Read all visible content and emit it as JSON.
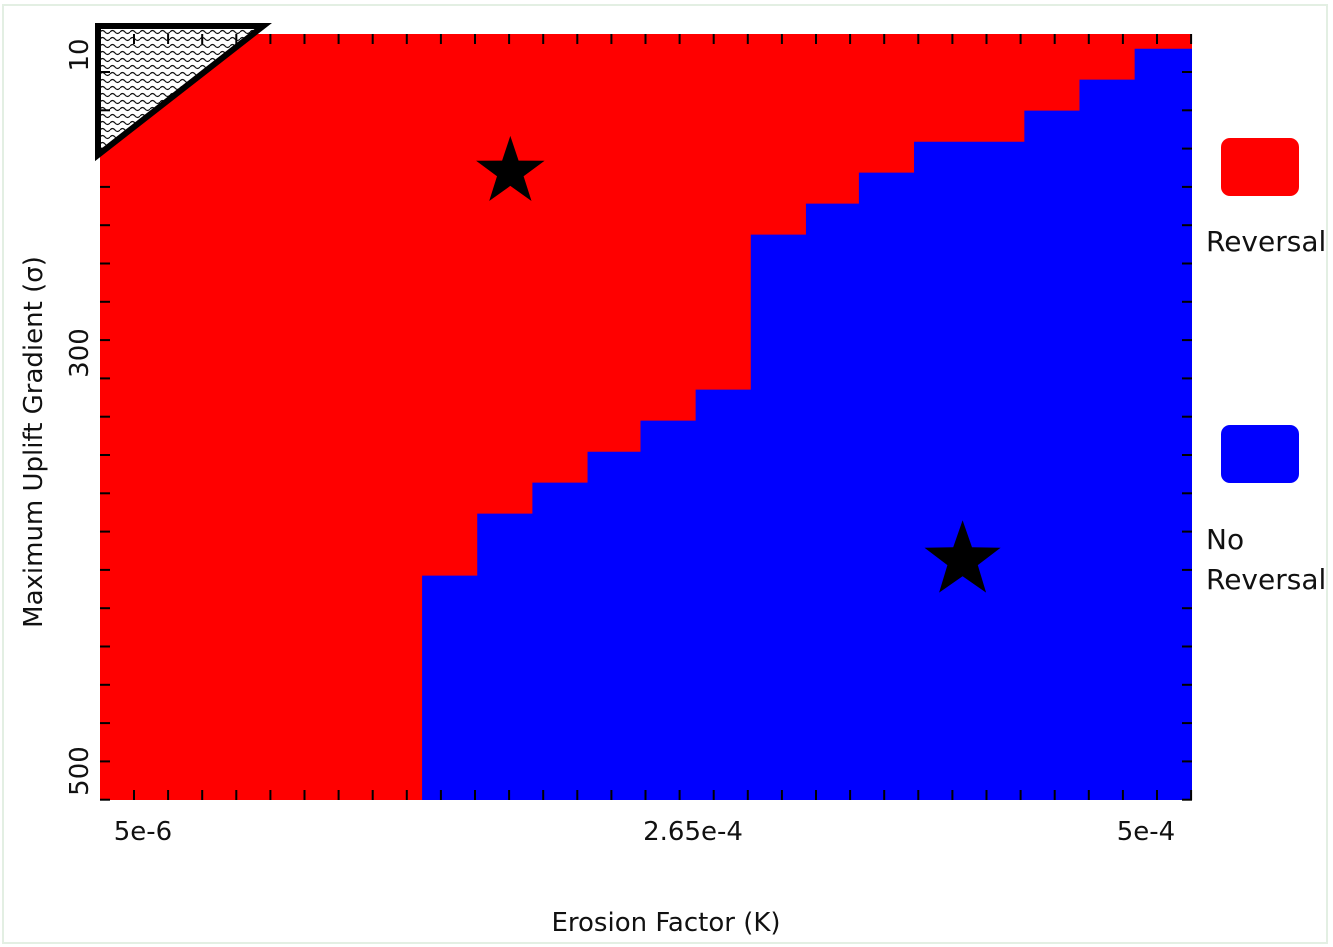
{
  "chart_data": {
    "type": "heatmap",
    "title": "",
    "xlabel": "Erosion Factor (K)",
    "ylabel": "Maximum Uplift Gradient (σ)",
    "x_tick_labels": [
      "5e-6",
      "2.65e-4",
      "5e-4"
    ],
    "y_tick_labels": [
      "10",
      "300",
      "500"
    ],
    "x_range": [
      5e-06,
      0.0005
    ],
    "y_range": [
      10,
      500
    ],
    "grid": false,
    "legend_position": "right",
    "categories": [
      {
        "key": "reversal",
        "label": "Reversal",
        "color": "#ff0000"
      },
      {
        "key": "no_reversal",
        "label": "No Reversal",
        "color": "#0000ff"
      }
    ],
    "no_reversal_boundary": [
      {
        "k_from": 0.000499,
        "sigma_from": 19.4
      },
      {
        "k_from": 0.000474,
        "sigma_from": 39.2
      },
      {
        "k_from": 0.000449,
        "sigma_from": 59.0
      },
      {
        "k_from": 0.000424,
        "sigma_from": 78.9
      },
      {
        "k_from": 0.000374,
        "sigma_from": 98.7
      },
      {
        "k_from": 0.000349,
        "sigma_from": 118.5
      },
      {
        "k_from": 0.000325,
        "sigma_from": 138.3
      },
      {
        "k_from": 0.0003,
        "sigma_from": 237.5
      },
      {
        "k_from": 0.000275,
        "sigma_from": 257.3
      },
      {
        "k_from": 0.00025,
        "sigma_from": 277.2
      },
      {
        "k_from": 0.000226,
        "sigma_from": 297.0
      },
      {
        "k_from": 0.000201,
        "sigma_from": 316.8
      },
      {
        "k_from": 0.000176,
        "sigma_from": 356.5
      },
      {
        "k_from": 0.000151,
        "sigma_from": 376.3
      }
    ],
    "stars": [
      {
        "k": 0.000191,
        "sigma": 98.2
      },
      {
        "k": 0.000396,
        "sigma": 346.6
      }
    ],
    "hatched_region": {
      "k_max": 7.9e-05,
      "sigma_max": 87.4
    }
  }
}
